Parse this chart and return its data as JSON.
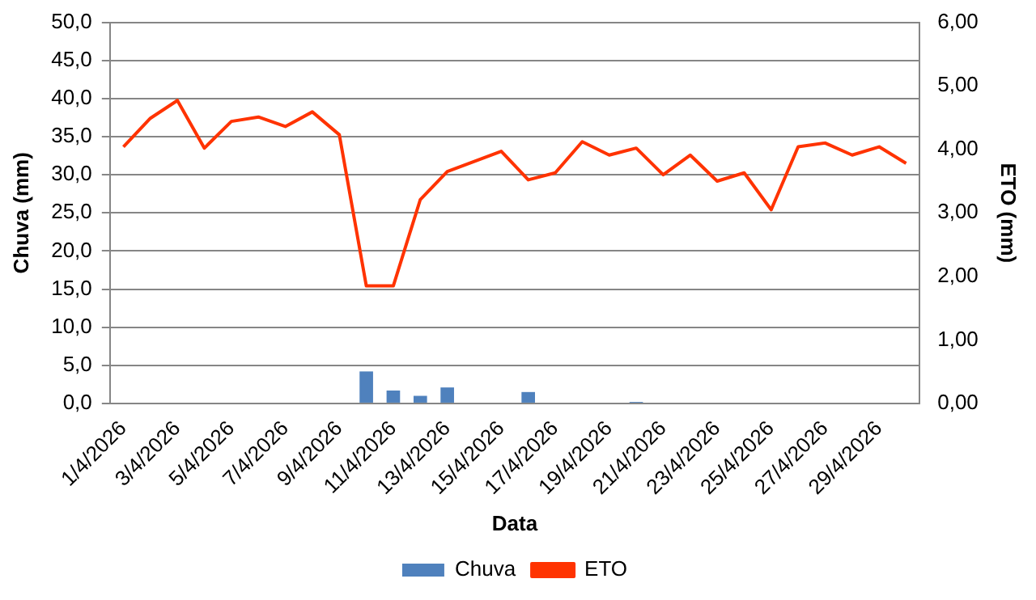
{
  "chart_data": {
    "type": "bar",
    "xlabel": "Data",
    "ylabel": "Chuva (mm)",
    "y2label": "ETO (mm)",
    "categories": [
      "1/4/2026",
      null,
      "3/4/2026",
      null,
      "5/4/2026",
      null,
      "7/4/2026",
      null,
      "9/4/2026",
      null,
      "11/4/2026",
      null,
      "13/4/2026",
      null,
      "15/4/2026",
      null,
      "17/4/2026",
      null,
      "19/4/2026",
      null,
      "21/4/2026",
      null,
      "23/4/2026",
      null,
      "25/4/2026",
      null,
      "27/4/2026",
      null,
      "29/4/2026",
      null
    ],
    "series": [
      {
        "name": "Chuva",
        "color": "#4f81bd",
        "values": [
          0,
          0,
          0,
          0,
          0,
          0,
          0,
          0,
          0,
          4.2,
          1.7,
          1.0,
          2.1,
          0,
          0,
          1.5,
          0,
          0,
          0,
          0.2,
          0,
          0,
          0,
          0,
          0,
          0,
          0,
          0,
          0,
          0
        ]
      },
      {
        "name": "ETO",
        "type": "line",
        "axis": "y2",
        "color": "#ff3300",
        "values": [
          4.04,
          4.49,
          4.77,
          4.02,
          4.44,
          4.51,
          4.36,
          4.59,
          4.23,
          1.85,
          1.85,
          3.21,
          3.65,
          3.81,
          3.97,
          3.52,
          3.63,
          4.12,
          3.91,
          4.02,
          3.6,
          3.91,
          3.5,
          3.63,
          3.05,
          4.04,
          4.1,
          3.91,
          4.04,
          3.78
        ]
      }
    ],
    "ylim": [
      0,
      50
    ],
    "yticks": [
      {
        "value": 0,
        "label": "0,0"
      },
      {
        "value": 5,
        "label": "5,0"
      },
      {
        "value": 10,
        "label": "10,0"
      },
      {
        "value": 15,
        "label": "15,0"
      },
      {
        "value": 20,
        "label": "20,0"
      },
      {
        "value": 25,
        "label": "25,0"
      },
      {
        "value": 30,
        "label": "30,0"
      },
      {
        "value": 35,
        "label": "35,0"
      },
      {
        "value": 40,
        "label": "40,0"
      },
      {
        "value": 45,
        "label": "45,0"
      },
      {
        "value": 50,
        "label": "50,0"
      }
    ],
    "y2lim": [
      0,
      6
    ],
    "y2ticks": [
      {
        "value": 0,
        "label": "0,00"
      },
      {
        "value": 1,
        "label": "1,00"
      },
      {
        "value": 2,
        "label": "2,00"
      },
      {
        "value": 3,
        "label": "3,00"
      },
      {
        "value": 4,
        "label": "4,00"
      },
      {
        "value": 5,
        "label": "5,00"
      },
      {
        "value": 6,
        "label": "6,00"
      }
    ],
    "grid": "y",
    "legend": "bottom",
    "marker": "none",
    "line_style": "solid"
  }
}
